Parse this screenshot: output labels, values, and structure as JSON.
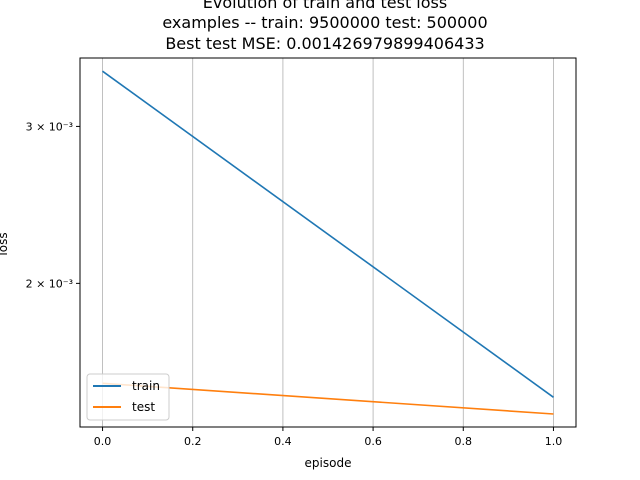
{
  "chart_data": {
    "type": "line",
    "title": "Evolution of train and test loss",
    "subtitle": "examples -- train: 9500000 test: 500000",
    "subtitle2": "Best test MSE: 0.001426979899406433",
    "xlabel": "episode",
    "ylabel": "loss",
    "yscale": "log",
    "xlim": [
      -0.05,
      1.05
    ],
    "ylim": [
      0.00138,
      0.00358
    ],
    "x_ticks": [
      0.0,
      0.2,
      0.4,
      0.6,
      0.8,
      1.0
    ],
    "x_tick_labels": [
      "0.0",
      "0.2",
      "0.4",
      "0.6",
      "0.8",
      "1.0"
    ],
    "y_ticks": [
      0.002,
      0.003
    ],
    "y_tick_labels": [
      "2 × 10⁻³",
      "3 × 10⁻³"
    ],
    "grid": "vertical",
    "legend_location": "lower-left",
    "series": [
      {
        "name": "train",
        "color": "#1f77b4",
        "x": [
          0.0,
          1.0
        ],
        "y": [
          0.00346,
          0.00149
        ]
      },
      {
        "name": "test",
        "color": "#ff7f0e",
        "x": [
          0.0,
          1.0
        ],
        "y": [
          0.001545,
          0.001427
        ]
      }
    ]
  }
}
